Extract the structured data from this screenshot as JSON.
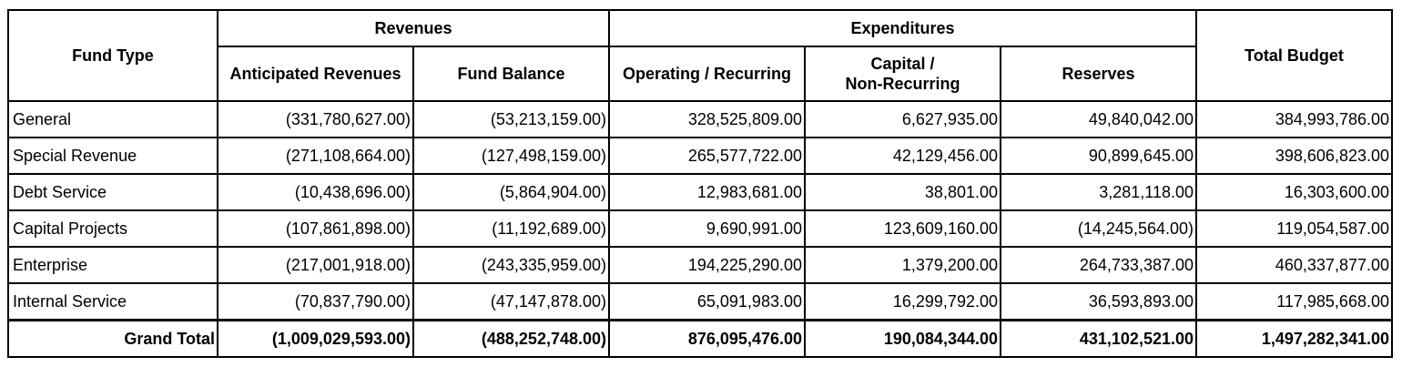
{
  "headers": {
    "fund_type": "Fund Type",
    "revenues": "Revenues",
    "expenditures": "Expenditures",
    "total_budget": "Total Budget",
    "anticipated_revenues": "Anticipated Revenues",
    "fund_balance": "Fund Balance",
    "operating_recurring": "Operating / Recurring",
    "capital_line1": "Capital /",
    "capital_line2": "Non-Recurring",
    "reserves": "Reserves"
  },
  "rows": [
    {
      "fund": "General",
      "anticipated": "(331,780,627.00)",
      "fund_balance": "(53,213,159.00)",
      "operating": "328,525,809.00",
      "capital": "6,627,935.00",
      "reserves": "49,840,042.00",
      "total": "384,993,786.00"
    },
    {
      "fund": "Special Revenue",
      "anticipated": "(271,108,664.00)",
      "fund_balance": "(127,498,159.00)",
      "operating": "265,577,722.00",
      "capital": "42,129,456.00",
      "reserves": "90,899,645.00",
      "total": "398,606,823.00"
    },
    {
      "fund": "Debt Service",
      "anticipated": "(10,438,696.00)",
      "fund_balance": "(5,864,904.00)",
      "operating": "12,983,681.00",
      "capital": "38,801.00",
      "reserves": "3,281,118.00",
      "total": "16,303,600.00"
    },
    {
      "fund": "Capital Projects",
      "anticipated": "(107,861,898.00)",
      "fund_balance": "(11,192,689.00)",
      "operating": "9,690,991.00",
      "capital": "123,609,160.00",
      "reserves": "(14,245,564.00)",
      "total": "119,054,587.00"
    },
    {
      "fund": "Enterprise",
      "anticipated": "(217,001,918.00)",
      "fund_balance": "(243,335,959.00)",
      "operating": "194,225,290.00",
      "capital": "1,379,200.00",
      "reserves": "264,733,387.00",
      "total": "460,337,877.00"
    },
    {
      "fund": "Internal Service",
      "anticipated": "(70,837,790.00)",
      "fund_balance": "(47,147,878.00)",
      "operating": "65,091,983.00",
      "capital": "16,299,792.00",
      "reserves": "36,593,893.00",
      "total": "117,985,668.00"
    }
  ],
  "grand_total": {
    "label": "Grand Total",
    "anticipated": "(1,009,029,593.00)",
    "fund_balance": "(488,252,748.00)",
    "operating": "876,095,476.00",
    "capital": "190,084,344.00",
    "reserves": "431,102,521.00",
    "total": "1,497,282,341.00"
  }
}
